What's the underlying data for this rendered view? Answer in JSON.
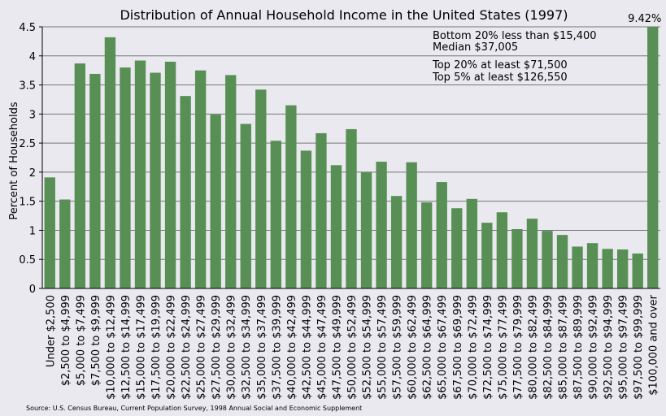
{
  "chart_data": {
    "type": "bar",
    "title": "Distribution of Annual Household Income in the United States (1997)",
    "y_label": "Percent of Households",
    "annotations": [
      "Bottom 20% less than $15,400",
      "Median $37,005",
      "Top 20% at least $71,500",
      "Top 5% at least $126,550"
    ],
    "source": "Source: U.S. Census Bureau, Current Population Survey, 1998 Annual Social and Economic Supplement",
    "categories": [
      "Under $2,500",
      "$2,500 to $4,999",
      "$5,000 to $7,499",
      "$7,500 to $9,999",
      "$10,000 to $12,499",
      "$12,500 to $14,999",
      "$15,000 to $17,499",
      "$17,500 to $19,999",
      "$20,000 to $22,499",
      "$22,500 to $24,999",
      "$25,000 to $27,499",
      "$27,500 to $29,999",
      "$30,000 to $32,499",
      "$32,500 to $34,999",
      "$35,000 to $37,499",
      "$37,500 to $39,999",
      "$40,000 to $42,499",
      "$42,500 to $44,999",
      "$45,000 to $47,499",
      "$47,500 to $49,999",
      "$50,000 to $52,499",
      "$52,500 to $54,999",
      "$55,000 to $57,499",
      "$57,500 to $59,999",
      "$60,000 to $62,499",
      "$62,500 to $64,999",
      "$65,000 to $67,499",
      "$67,500 to $69,999",
      "$70,000 to $72,499",
      "$72,500 to $74,999",
      "$75,000 to $77,499",
      "$77,500 to $79,999",
      "$80,000 to $82,499",
      "$82,500 to $84,999",
      "$85,000 to $87,499",
      "$87,500 to $89,999",
      "$90,000 to $92,499",
      "$92,500 to $94,999",
      "$95,000 to $97,499",
      "$97,500 to $99,999",
      "$100,000 and over"
    ],
    "values": [
      1.91,
      1.53,
      3.87,
      3.69,
      4.32,
      3.8,
      3.92,
      3.71,
      3.9,
      3.31,
      3.75,
      2.99,
      3.67,
      2.83,
      3.42,
      2.54,
      3.15,
      2.37,
      2.67,
      2.12,
      2.74,
      2.0,
      2.18,
      1.59,
      2.17,
      1.48,
      1.83,
      1.38,
      1.54,
      1.13,
      1.31,
      1.02,
      1.2,
      0.99,
      0.92,
      0.72,
      0.78,
      0.68,
      0.67,
      0.6,
      9.42
    ],
    "value_labels": [
      null,
      null,
      null,
      null,
      null,
      null,
      null,
      null,
      null,
      null,
      null,
      null,
      null,
      null,
      null,
      null,
      null,
      null,
      null,
      null,
      null,
      null,
      null,
      null,
      null,
      null,
      null,
      null,
      null,
      null,
      null,
      null,
      null,
      null,
      null,
      null,
      null,
      null,
      null,
      null,
      "9.42%"
    ],
    "color": "#588f55",
    "ylim": [
      0,
      4.5
    ],
    "yticks": [
      0,
      0.5,
      1,
      1.5,
      2,
      2.5,
      3,
      3.5,
      4,
      4.5
    ],
    "grid": true
  }
}
